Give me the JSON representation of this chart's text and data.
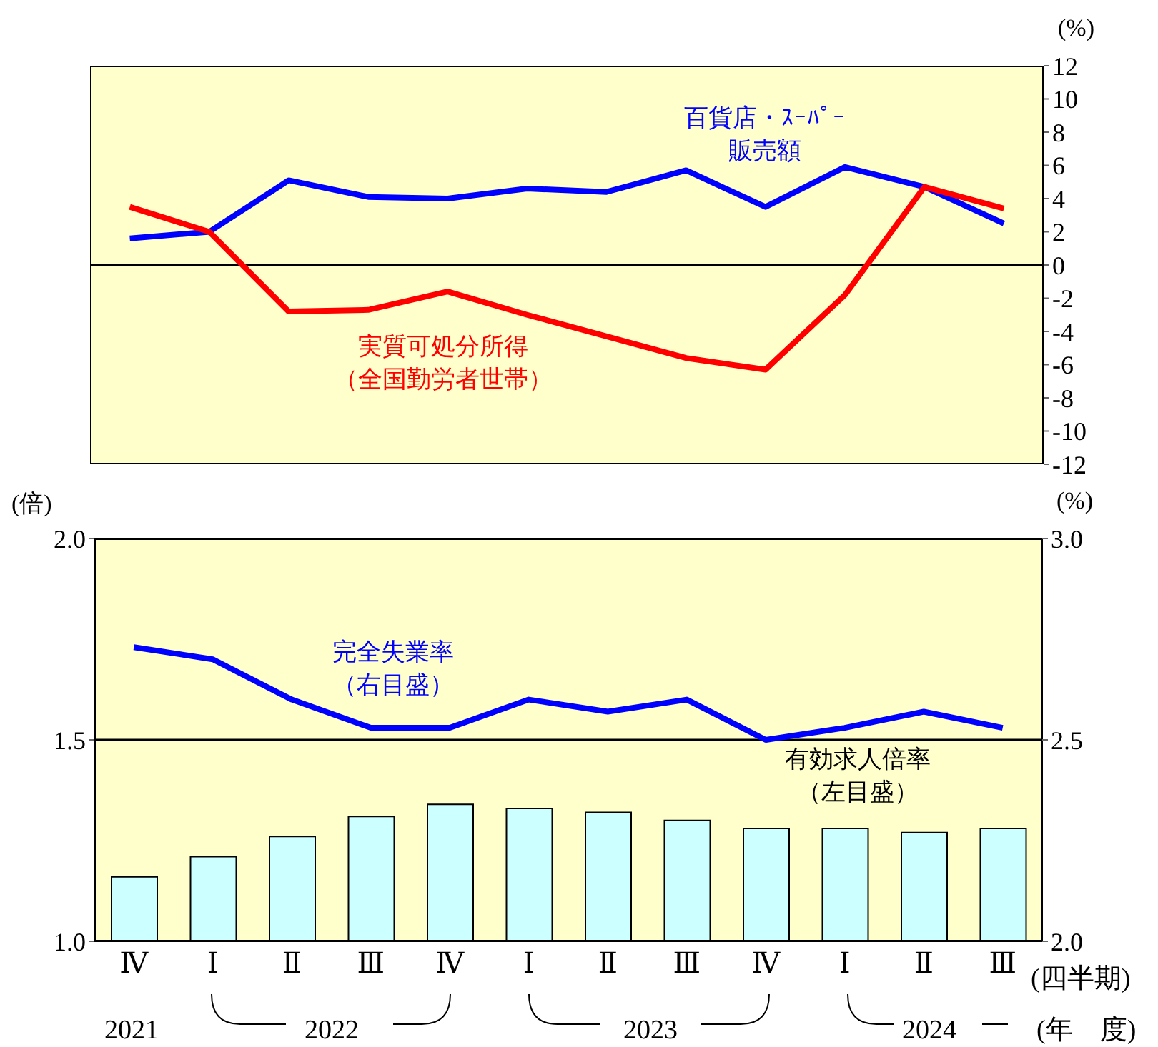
{
  "chart_data": [
    {
      "type": "line",
      "categories": [
        null,
        null,
        null,
        null,
        null,
        null,
        null,
        null,
        null,
        null,
        null,
        null
      ],
      "ylabel": "(%)",
      "ylim": [
        -12,
        12
      ],
      "yticks": [
        -12,
        -10,
        -8,
        -6,
        -4,
        -2,
        0,
        2,
        4,
        6,
        8,
        10,
        12
      ],
      "tick_labels": "y",
      "legend": false,
      "ref_lines": [
        {
          "axis": "y",
          "value": 0,
          "color": "#000000"
        }
      ],
      "series": [
        {
          "name": "百貨店・ｽｰﾊﾟｰ販売額",
          "color": "#0000ff",
          "values": [
            1.6,
            2.0,
            5.1,
            4.1,
            4.0,
            4.6,
            4.4,
            5.7,
            3.5,
            5.9,
            4.7,
            2.5
          ]
        },
        {
          "name": "実質可処分所得（全国勤労者世帯）",
          "color": "#ff0000",
          "values": [
            3.5,
            2.0,
            -2.8,
            -2.7,
            -1.6,
            -3.0,
            -4.3,
            -5.6,
            -6.3,
            -1.8,
            4.7,
            3.4
          ]
        }
      ]
    },
    {
      "type": "bar",
      "categories": [
        "Ⅳ",
        "Ⅰ",
        "Ⅱ",
        "Ⅲ",
        "Ⅳ",
        "Ⅰ",
        "Ⅱ",
        "Ⅲ",
        "Ⅳ",
        "Ⅰ",
        "Ⅱ",
        "Ⅲ"
      ],
      "xlabel": "(四半期)",
      "ylabel": "(倍)",
      "y2label": "(%)",
      "legend": false,
      "ylim": [
        1,
        2
      ],
      "yticks": [
        {
          "value": 1,
          "label": "1.0"
        },
        {
          "value": 1.5,
          "label": "1.5"
        },
        {
          "value": 2,
          "label": "2.0"
        }
      ],
      "y2lim": [
        2,
        3
      ],
      "y2ticks": [
        {
          "value": 2,
          "label": "2.0"
        },
        {
          "value": 2.5,
          "label": "2.5"
        },
        {
          "value": 3,
          "label": "3.0"
        }
      ],
      "annotations": [
        "2021",
        "2022",
        "2023",
        "2024",
        "(年　度)"
      ],
      "ref_lines": [
        {
          "axis": "y",
          "value": 1.5,
          "color": "#000000"
        }
      ],
      "series": [
        {
          "name": "有効求人倍率（左目盛）",
          "color": "#ccffff",
          "values": [
            1.16,
            1.21,
            1.26,
            1.31,
            1.34,
            1.33,
            1.32,
            1.3,
            1.28,
            1.28,
            1.27,
            1.28
          ]
        },
        {
          "type": "line",
          "axis": "y2",
          "name": "完全失業率（右目盛）",
          "color": "#0000ff",
          "values": [
            2.73,
            2.7,
            2.6,
            2.53,
            2.53,
            2.6,
            2.57,
            2.6,
            2.5,
            2.53,
            2.57,
            2.53
          ]
        }
      ]
    }
  ]
}
